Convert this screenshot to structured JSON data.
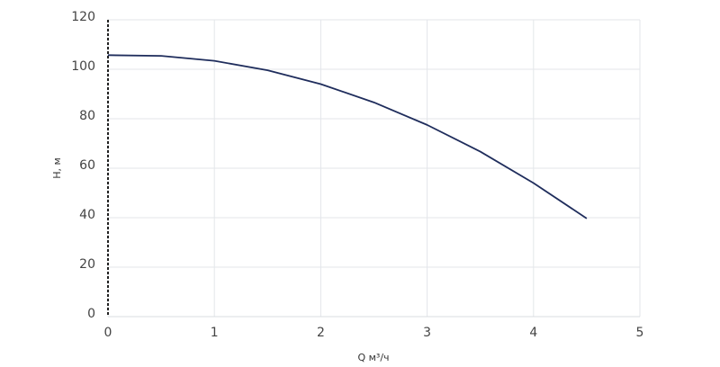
{
  "chart_data": {
    "type": "line",
    "x_label": "Q м³/ч",
    "y_label": "H, м",
    "x": [
      0,
      0.5,
      1,
      1.5,
      2,
      2.5,
      3,
      3.5,
      4,
      4.5
    ],
    "series": [
      {
        "color": "#1f2d5c",
        "values": [
          105.7,
          105.4,
          103.4,
          99.6,
          94.0,
          86.6,
          77.5,
          66.7,
          54.0,
          39.7
        ]
      }
    ],
    "xlim": [
      0,
      5
    ],
    "xticks": [
      0,
      1,
      2,
      3,
      4,
      5
    ],
    "ylim": [
      0,
      120
    ],
    "yticks": [
      0,
      20,
      40,
      60,
      80,
      100,
      120
    ],
    "grid": true
  }
}
